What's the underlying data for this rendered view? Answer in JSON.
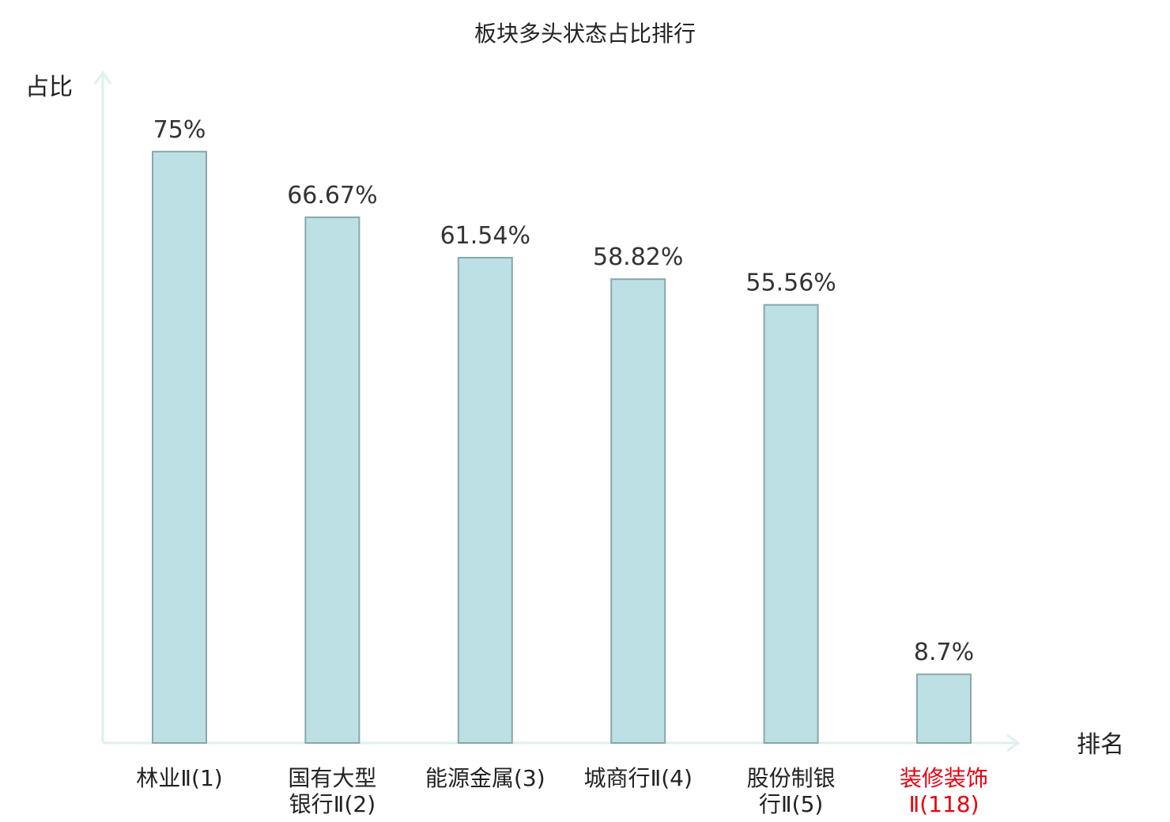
{
  "chart_data": {
    "type": "bar",
    "title": "板块多头状态占比排行",
    "ylabel": "占比",
    "xlabel": "排名",
    "ylim": [
      0,
      85
    ],
    "grid": false,
    "legend": "none",
    "categories": [
      {
        "lines": [
          "林业Ⅱ(1)"
        ],
        "highlight": false
      },
      {
        "lines": [
          "国有大型",
          "银行Ⅱ(2)"
        ],
        "highlight": false
      },
      {
        "lines": [
          "能源金属(3)"
        ],
        "highlight": false
      },
      {
        "lines": [
          "城商行Ⅱ(4)"
        ],
        "highlight": false
      },
      {
        "lines": [
          "股份制银",
          "行Ⅱ(5)"
        ],
        "highlight": false
      },
      {
        "lines": [
          "装修装饰",
          "Ⅱ(118)"
        ],
        "highlight": true
      }
    ],
    "values": [
      75,
      66.67,
      61.54,
      58.82,
      55.56,
      8.7
    ],
    "value_labels": [
      "75%",
      "66.67%",
      "61.54%",
      "58.82%",
      "55.56%",
      "8.7%"
    ],
    "colors": {
      "bar_fill": "#bce0e3",
      "bar_stroke": "#8aa7aa",
      "axis": "#dff0ee",
      "text": "#222222",
      "value_text": "#333333",
      "highlight": "#e8000e"
    }
  }
}
